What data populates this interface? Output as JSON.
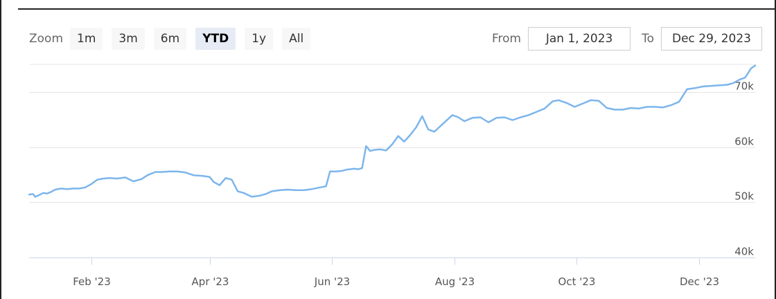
{
  "range_selector": {
    "zoom_label": "Zoom",
    "buttons": [
      {
        "label": "1m",
        "active": false
      },
      {
        "label": "3m",
        "active": false
      },
      {
        "label": "6m",
        "active": false
      },
      {
        "label": "YTD",
        "active": true
      },
      {
        "label": "1y",
        "active": false
      },
      {
        "label": "All",
        "active": false
      }
    ],
    "from_label": "From",
    "from_value": "Jan 1, 2023",
    "to_label": "To",
    "to_value": "Dec 29, 2023"
  },
  "chart_data": {
    "type": "line",
    "title": "",
    "xlabel": "",
    "ylabel": "",
    "x_range": [
      "2023-01-01",
      "2023-12-29"
    ],
    "ylim": [
      39000,
      75000
    ],
    "y_ticks": [
      40000,
      50000,
      60000,
      70000
    ],
    "y_tick_labels": [
      "40k",
      "50k",
      "60k",
      "70k"
    ],
    "x_ticks": [
      "2023-02-01",
      "2023-04-01",
      "2023-06-01",
      "2023-08-01",
      "2023-10-01",
      "2023-12-01"
    ],
    "x_tick_labels": [
      "Feb '23",
      "Apr '23",
      "Jun '23",
      "Aug '23",
      "Oct '23",
      "Dec '23"
    ],
    "grid": true,
    "color": "#7cb5ec",
    "series": [
      {
        "x": [
          "2023-01-01",
          "2023-01-03",
          "2023-01-04",
          "2023-01-06",
          "2023-01-08",
          "2023-01-10",
          "2023-01-12",
          "2023-01-14",
          "2023-01-17",
          "2023-01-20",
          "2023-01-23",
          "2023-01-26",
          "2023-01-29",
          "2023-02-01",
          "2023-02-04",
          "2023-02-07",
          "2023-02-10",
          "2023-02-14",
          "2023-02-18",
          "2023-02-22",
          "2023-02-26",
          "2023-03-01",
          "2023-03-05",
          "2023-03-08",
          "2023-03-12",
          "2023-03-16",
          "2023-03-20",
          "2023-03-24",
          "2023-03-28",
          "2023-03-30",
          "2023-04-01",
          "2023-04-03",
          "2023-04-06",
          "2023-04-09",
          "2023-04-12",
          "2023-04-15",
          "2023-04-18",
          "2023-04-22",
          "2023-04-26",
          "2023-04-29",
          "2023-05-02",
          "2023-05-06",
          "2023-05-10",
          "2023-05-14",
          "2023-05-18",
          "2023-05-22",
          "2023-05-26",
          "2023-05-29",
          "2023-05-31",
          "2023-06-03",
          "2023-06-06",
          "2023-06-08",
          "2023-06-10",
          "2023-06-12",
          "2023-06-14",
          "2023-06-16",
          "2023-06-18",
          "2023-06-20",
          "2023-06-22",
          "2023-06-25",
          "2023-06-28",
          "2023-07-01",
          "2023-07-04",
          "2023-07-07",
          "2023-07-10",
          "2023-07-13",
          "2023-07-16",
          "2023-07-19",
          "2023-07-22",
          "2023-07-25",
          "2023-07-28",
          "2023-07-31",
          "2023-08-03",
          "2023-08-06",
          "2023-08-10",
          "2023-08-14",
          "2023-08-18",
          "2023-08-22",
          "2023-08-26",
          "2023-08-30",
          "2023-09-03",
          "2023-09-07",
          "2023-09-11",
          "2023-09-15",
          "2023-09-19",
          "2023-09-22",
          "2023-09-26",
          "2023-09-30",
          "2023-10-04",
          "2023-10-08",
          "2023-10-12",
          "2023-10-16",
          "2023-10-20",
          "2023-10-24",
          "2023-10-28",
          "2023-11-01",
          "2023-11-05",
          "2023-11-09",
          "2023-11-13",
          "2023-11-17",
          "2023-11-21",
          "2023-11-25",
          "2023-11-29",
          "2023-12-03",
          "2023-12-07",
          "2023-12-11",
          "2023-12-15",
          "2023-12-18",
          "2023-12-21",
          "2023-12-24",
          "2023-12-27",
          "2023-12-29"
        ],
        "y": [
          51400,
          51500,
          51000,
          51300,
          51700,
          51600,
          51900,
          52300,
          52500,
          52400,
          52500,
          52500,
          52700,
          53300,
          54100,
          54300,
          54400,
          54300,
          54500,
          53800,
          54200,
          54900,
          55500,
          55500,
          55600,
          55600,
          55400,
          54900,
          54800,
          54700,
          54600,
          53700,
          53100,
          54400,
          54100,
          52000,
          51700,
          51000,
          51200,
          51500,
          52000,
          52200,
          52300,
          52200,
          52200,
          52400,
          52700,
          52900,
          55600,
          55600,
          55700,
          55900,
          56000,
          56100,
          56000,
          56200,
          60200,
          59300,
          59500,
          59600,
          59400,
          60500,
          62000,
          61000,
          62200,
          63600,
          65600,
          63200,
          62800,
          63800,
          64800,
          65800,
          65400,
          64700,
          65300,
          65400,
          64500,
          65300,
          65400,
          64900,
          65400,
          65800,
          66400,
          67000,
          68300,
          68500,
          68000,
          67300,
          67900,
          68500,
          68400,
          67100,
          66800,
          66800,
          67100,
          67000,
          67300,
          67300,
          67200,
          67600,
          68200,
          70500,
          70700,
          71000,
          71100,
          71200,
          71300,
          71600,
          72200,
          72600,
          74300,
          74800
        ]
      }
    ]
  }
}
